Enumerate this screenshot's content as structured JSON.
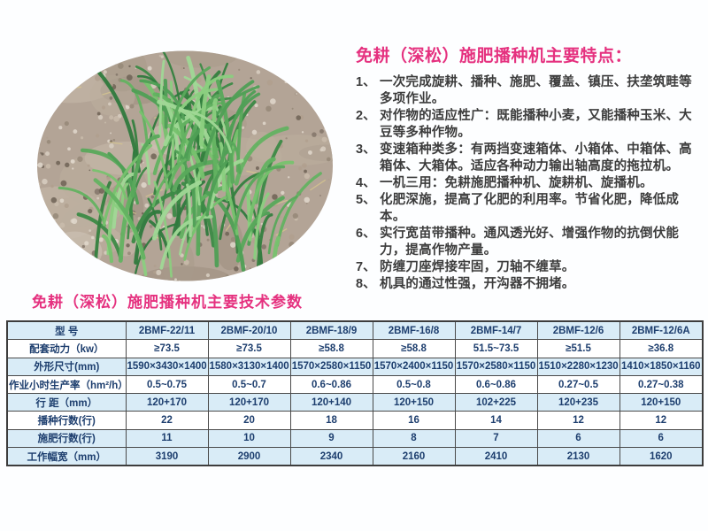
{
  "features": {
    "title": "免耕（深松）施肥播种机主要特点：",
    "items": [
      {
        "num": "1、",
        "text": "一次完成旋耕、播种、施肥、覆盖、镇压、扶垄筑畦等多项作业。"
      },
      {
        "num": "2、",
        "text": "对作物的适应性广：既能播种小麦，又能播种玉米、大豆等多种作物。"
      },
      {
        "num": "3、",
        "text": "变速箱种类多：有两挡变速箱体、小箱体、中箱体、高箱体、大箱体。适应各种动力输出轴高度的拖拉机。"
      },
      {
        "num": "4、",
        "text": "一机三用：免耕施肥播种机、旋耕机、旋播机。"
      },
      {
        "num": "5、",
        "text": "化肥深施，提高了化肥的利用率。节省化肥，降低成本。"
      },
      {
        "num": "6、",
        "text": "实行宽苗带播种。通风透光好、增强作物的抗倒伏能力，提高作物产量。"
      },
      {
        "num": "7、",
        "text": "防缠刀座焊接牢固，刀轴不缠草。"
      },
      {
        "num": "8、",
        "text": "机具的通过性强，开沟器不拥堵。"
      }
    ]
  },
  "specs": {
    "title": "免耕（深松）施肥播种机主要技术参数",
    "model_label": "型  号",
    "models": [
      "2BMF-22/11",
      "2BMF-20/10",
      "2BMF-18/9",
      "2BMF-16/8",
      "2BMF-14/7",
      "2BMF-12/6",
      "2BMF-12/6A"
    ],
    "rows": [
      {
        "label": "配套动力（kw）",
        "values": [
          "≥73.5",
          "≥73.5",
          "≥58.8",
          "≥58.8",
          "51.5~73.5",
          "≥51.5",
          "≥36.8"
        ]
      },
      {
        "label": "外形尺寸(mm)",
        "values": [
          "1590×3430×1400",
          "1580×3130×1400",
          "1570×2580×1150",
          "1570×2400×1150",
          "1570×2580×1150",
          "1510×2280×1230",
          "1410×1850×1160"
        ]
      },
      {
        "label": "作业小时生产率（hm²/h）",
        "values": [
          "0.5~0.75",
          "0.5~0.7",
          "0.6~0.86",
          "0.5~0.8",
          "0.6~0.86",
          "0.27~0.5",
          "0.27~0.38"
        ]
      },
      {
        "label": "行 距（mm）",
        "values": [
          "120+170",
          "120+170",
          "120+140",
          "120+150",
          "102+225",
          "120+235",
          "120+150"
        ]
      },
      {
        "label": "播种行数(行)",
        "values": [
          "22",
          "20",
          "18",
          "16",
          "14",
          "12",
          "12"
        ]
      },
      {
        "label": "施肥行数(行)",
        "values": [
          "11",
          "10",
          "9",
          "8",
          "7",
          "6",
          "6"
        ]
      },
      {
        "label": "工作幅宽（mm）",
        "values": [
          "3190",
          "2900",
          "2340",
          "2160",
          "2410",
          "2130",
          "1620"
        ]
      }
    ]
  },
  "colors": {
    "accent_pink": "#e5317f",
    "table_text": "#1d3e6e",
    "row_shade": "#d9ecf7",
    "list_text": "#3c3c3c",
    "soil": "#b3a496",
    "grass": "#4f9f55"
  }
}
